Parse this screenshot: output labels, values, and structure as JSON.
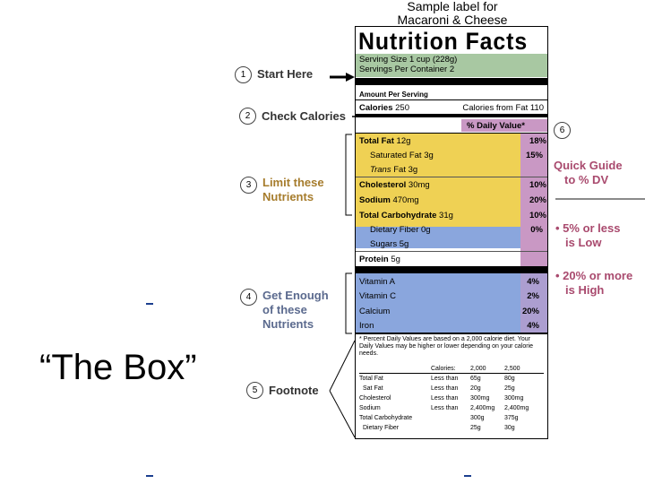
{
  "header": {
    "line1": "Sample label for",
    "line2": "Macaroni & Cheese"
  },
  "label": {
    "title": "Nutrition Facts",
    "serving_size": "Serving Size 1 cup (228g)",
    "servings_per_container": "Servings Per Container  2",
    "amount_per_serving": "Amount Per Serving",
    "calories_label": "Calories",
    "calories_value": "250",
    "calories_from_fat": "Calories from Fat 110",
    "daily_value_header": "% Daily Value*",
    "nutrients": [
      {
        "name": "Total Fat",
        "amount": "12g",
        "dv": "18%"
      },
      {
        "name": "Saturated Fat",
        "amount": "3g",
        "dv": "15%"
      },
      {
        "name": "Trans",
        "amount": "Fat 3g",
        "dv": ""
      },
      {
        "name": "Cholesterol",
        "amount": "30mg",
        "dv": "10%"
      },
      {
        "name": "Sodium",
        "amount": "470mg",
        "dv": "20%"
      },
      {
        "name": "Total Carbohydrate",
        "amount": "31g",
        "dv": "10%"
      },
      {
        "name": "Dietary Fiber",
        "amount": "0g",
        "dv": "0%"
      },
      {
        "name": "Sugars",
        "amount": "5g",
        "dv": ""
      },
      {
        "name": "Protein",
        "amount": "5g",
        "dv": ""
      }
    ],
    "vitamins": [
      {
        "name": "Vitamin A",
        "dv": "4%"
      },
      {
        "name": "Vitamin C",
        "dv": "2%"
      },
      {
        "name": "Calcium",
        "dv": "20%"
      },
      {
        "name": "Iron",
        "dv": "4%"
      }
    ],
    "footnote_text": "* Percent Daily Values are based on a 2,000 calorie diet. Your Daily Values may be higher or lower depending on your calorie needs.",
    "footnote_table": {
      "headers": [
        "Calories:",
        "2,000",
        "2,500"
      ],
      "rows": [
        [
          "Total Fat",
          "Less than",
          "65g",
          "80g"
        ],
        [
          "Sat Fat",
          "Less than",
          "20g",
          "25g"
        ],
        [
          "Cholesterol",
          "Less than",
          "300mg",
          "300mg"
        ],
        [
          "Sodium",
          "Less than",
          "2,400mg",
          "2,400mg"
        ],
        [
          "Total Carbohydrate",
          "",
          "300g",
          "375g"
        ],
        [
          "Dietary Fiber",
          "",
          "25g",
          "30g"
        ]
      ]
    }
  },
  "steps": [
    {
      "number": "1",
      "text": "Start Here"
    },
    {
      "number": "2",
      "text": "Check Calories"
    },
    {
      "number": "3",
      "line1": "Limit these",
      "line2": "Nutrients"
    },
    {
      "number": "4",
      "line1": "Get Enough",
      "line2": "of these",
      "line3": "Nutrients"
    },
    {
      "number": "5",
      "text": "Footnote"
    },
    {
      "number": "6"
    }
  ],
  "guide": {
    "line1": "Quick Guide",
    "line2": "to % DV",
    "low1": "• 5% or less",
    "low2": "is Low",
    "high1": "• 20% or more",
    "high2": "is High"
  },
  "slide_text": "“The Box”",
  "colors": {
    "serving_band": "#a8c8a2",
    "limit_band": "#efd154",
    "enough_band": "#8aa6dd",
    "dv_column": "#c998c4",
    "limit_text": "#a67c2c",
    "enough_text": "#5b6a8e",
    "guide_text": "#a94a6e",
    "dash": "#1c3f8f"
  }
}
